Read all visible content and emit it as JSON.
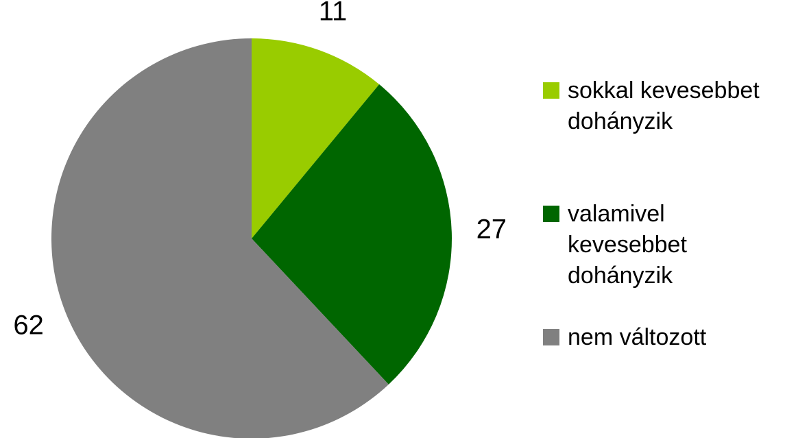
{
  "chart_data": {
    "type": "pie",
    "categories": [
      "sokkal kevesebbet\ndohányzik",
      "valamivel\nkevesebbet\ndohányzik",
      "nem változott"
    ],
    "values": [
      11,
      27,
      62
    ],
    "colors": [
      "#99cc00",
      "#006600",
      "#808080"
    ],
    "legend": "right"
  }
}
